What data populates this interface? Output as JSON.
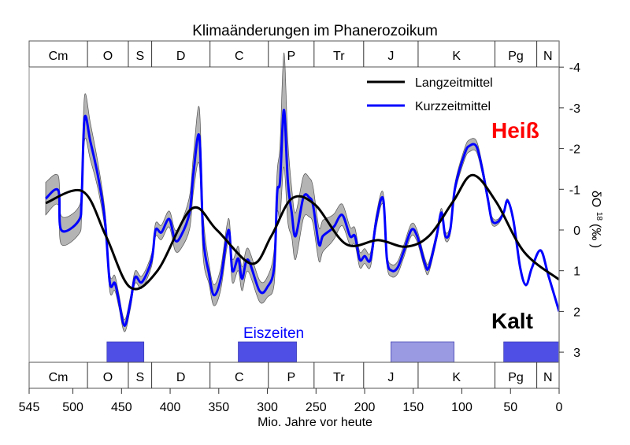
{
  "chart_data": {
    "type": "line",
    "title": "Klimaänderungen im Phanerozoikum",
    "xlabel": "Mio. Jahre vor heute",
    "ylabel": "δO",
    "ylabel_sup": "18",
    "ylabel_unit": "(‰ )",
    "xlim": [
      545,
      0
    ],
    "ylim": [
      3.3,
      -4
    ],
    "y_inverted": true,
    "x_ticks": [
      545,
      500,
      450,
      400,
      350,
      300,
      250,
      200,
      150,
      100,
      50,
      0
    ],
    "y_ticks": [
      -4,
      -3,
      -2,
      -1,
      0,
      1,
      2,
      3
    ],
    "grid": false,
    "legend_position": "top-right",
    "annotations": {
      "hot": "Heiß",
      "cold": "Kalt",
      "ice_ages": "Eiszeiten"
    },
    "colors": {
      "long": "#000000",
      "short": "#0000ff",
      "band": "#b4b4b4",
      "hot": "#ff0000",
      "ice": "#4f4fe6",
      "ice_uncertain": "#9a9ae2"
    },
    "periods": [
      {
        "label": "Cm",
        "start": 545,
        "end": 485
      },
      {
        "label": "O",
        "start": 485,
        "end": 443
      },
      {
        "label": "S",
        "start": 443,
        "end": 419
      },
      {
        "label": "D",
        "start": 419,
        "end": 359
      },
      {
        "label": "C",
        "start": 359,
        "end": 299
      },
      {
        "label": "P",
        "start": 299,
        "end": 252
      },
      {
        "label": "Tr",
        "start": 252,
        "end": 201
      },
      {
        "label": "J",
        "start": 201,
        "end": 145
      },
      {
        "label": "K",
        "start": 145,
        "end": 66
      },
      {
        "label": "Pg",
        "start": 66,
        "end": 23
      },
      {
        "label": "N",
        "start": 23,
        "end": 0
      }
    ],
    "ice_ages": [
      {
        "start": 465,
        "end": 427,
        "certain": true
      },
      {
        "start": 330,
        "end": 270,
        "certain": true
      },
      {
        "start": 173,
        "end": 108,
        "certain": false
      },
      {
        "start": 57,
        "end": 0,
        "certain": true
      }
    ],
    "series": [
      {
        "name": "Langzeitmittel",
        "points": [
          [
            528,
            -0.66
          ],
          [
            490,
            -0.95
          ],
          [
            466,
            0.15
          ],
          [
            441,
            1.41
          ],
          [
            413,
            1.0
          ],
          [
            378,
            -0.52
          ],
          [
            352,
            0
          ],
          [
            316,
            0.83
          ],
          [
            296,
            0.15
          ],
          [
            275,
            -0.77
          ],
          [
            251,
            -0.62
          ],
          [
            219,
            0.35
          ],
          [
            186,
            0.25
          ],
          [
            158,
            0.41
          ],
          [
            134,
            0.15
          ],
          [
            109,
            -0.7
          ],
          [
            89,
            -1.35
          ],
          [
            65,
            -0.7
          ],
          [
            36,
            0.54
          ],
          [
            0,
            1.22
          ]
        ]
      },
      {
        "name": "Kurzzeitmittel",
        "points": [
          [
            528,
            -0.77
          ],
          [
            515,
            -0.97
          ],
          [
            512,
            0
          ],
          [
            494,
            -0.23
          ],
          [
            491,
            -0.8
          ],
          [
            488,
            -2.75
          ],
          [
            482,
            -2.17
          ],
          [
            474,
            -1.3
          ],
          [
            467,
            -0.23
          ],
          [
            462,
            1.3
          ],
          [
            457,
            1.3
          ],
          [
            453,
            1.7
          ],
          [
            447,
            2.35
          ],
          [
            441,
            1.8
          ],
          [
            436,
            1.16
          ],
          [
            429,
            1.28
          ],
          [
            419,
            0.73
          ],
          [
            415,
            0
          ],
          [
            409,
            0.06
          ],
          [
            401,
            -0.27
          ],
          [
            395,
            0.25
          ],
          [
            389,
            0.15
          ],
          [
            380,
            -0.43
          ],
          [
            376,
            -1.4
          ],
          [
            370,
            -2.3
          ],
          [
            366,
            0.15
          ],
          [
            360,
            1.08
          ],
          [
            355,
            1.6
          ],
          [
            348,
            1.2
          ],
          [
            340,
            0
          ],
          [
            336,
            1.0
          ],
          [
            330,
            0.7
          ],
          [
            326,
            1.2
          ],
          [
            320,
            0.73
          ],
          [
            308,
            1.5
          ],
          [
            300,
            1.4
          ],
          [
            293,
            0.9
          ],
          [
            290,
            -0.9
          ],
          [
            287,
            -1.2
          ],
          [
            283,
            -2.95
          ],
          [
            279,
            -1.2
          ],
          [
            275,
            -0.43
          ],
          [
            271,
            0.15
          ],
          [
            263,
            -0.8
          ],
          [
            257,
            -0.8
          ],
          [
            253,
            -0.6
          ],
          [
            247,
            0.35
          ],
          [
            243,
            0.15
          ],
          [
            235,
            0
          ],
          [
            231,
            -0.1
          ],
          [
            223,
            -0.37
          ],
          [
            215,
            0.15
          ],
          [
            210,
            0.15
          ],
          [
            205,
            0.73
          ],
          [
            200,
            0.64
          ],
          [
            194,
            0.73
          ],
          [
            188,
            -0.23
          ],
          [
            181,
            -0.77
          ],
          [
            177,
            0.73
          ],
          [
            172,
            1.0
          ],
          [
            166,
            0.92
          ],
          [
            160,
            0.54
          ],
          [
            152,
            0
          ],
          [
            146,
            0.15
          ],
          [
            138,
            0.83
          ],
          [
            134,
            0.92
          ],
          [
            126,
            0.15
          ],
          [
            121,
            -0.43
          ],
          [
            117,
            0.15
          ],
          [
            112,
            0
          ],
          [
            107,
            -1.04
          ],
          [
            97,
            -1.88
          ],
          [
            92,
            -2.07
          ],
          [
            85,
            -2.05
          ],
          [
            79,
            -1.49
          ],
          [
            73,
            -0.72
          ],
          [
            69,
            -0.23
          ],
          [
            63,
            -0.2
          ],
          [
            57,
            -0.43
          ],
          [
            53,
            -0.72
          ],
          [
            47,
            -0.23
          ],
          [
            40,
            0.93
          ],
          [
            34,
            1.35
          ],
          [
            28,
            0.93
          ],
          [
            19,
            0.5
          ],
          [
            11,
            1.12
          ],
          [
            0,
            2.0
          ]
        ]
      }
    ],
    "uncertainty_band": [
      [
        528,
        0.4
      ],
      [
        512,
        0.35
      ],
      [
        495,
        0.3
      ],
      [
        488,
        0.55
      ],
      [
        470,
        0.25
      ],
      [
        450,
        0.15
      ],
      [
        420,
        0.15
      ],
      [
        400,
        0.2
      ],
      [
        376,
        0.45
      ],
      [
        370,
        0.7
      ],
      [
        360,
        0.25
      ],
      [
        330,
        0.3
      ],
      [
        300,
        0.25
      ],
      [
        290,
        0.5
      ],
      [
        283,
        1.4
      ],
      [
        275,
        0.6
      ],
      [
        260,
        0.5
      ],
      [
        245,
        0.4
      ],
      [
        230,
        0.3
      ],
      [
        210,
        0.2
      ],
      [
        180,
        0.15
      ],
      [
        150,
        0.15
      ],
      [
        120,
        0.1
      ],
      [
        90,
        0.15
      ],
      [
        70,
        0.1
      ],
      [
        60,
        0.05
      ],
      [
        0,
        0.0
      ]
    ]
  }
}
